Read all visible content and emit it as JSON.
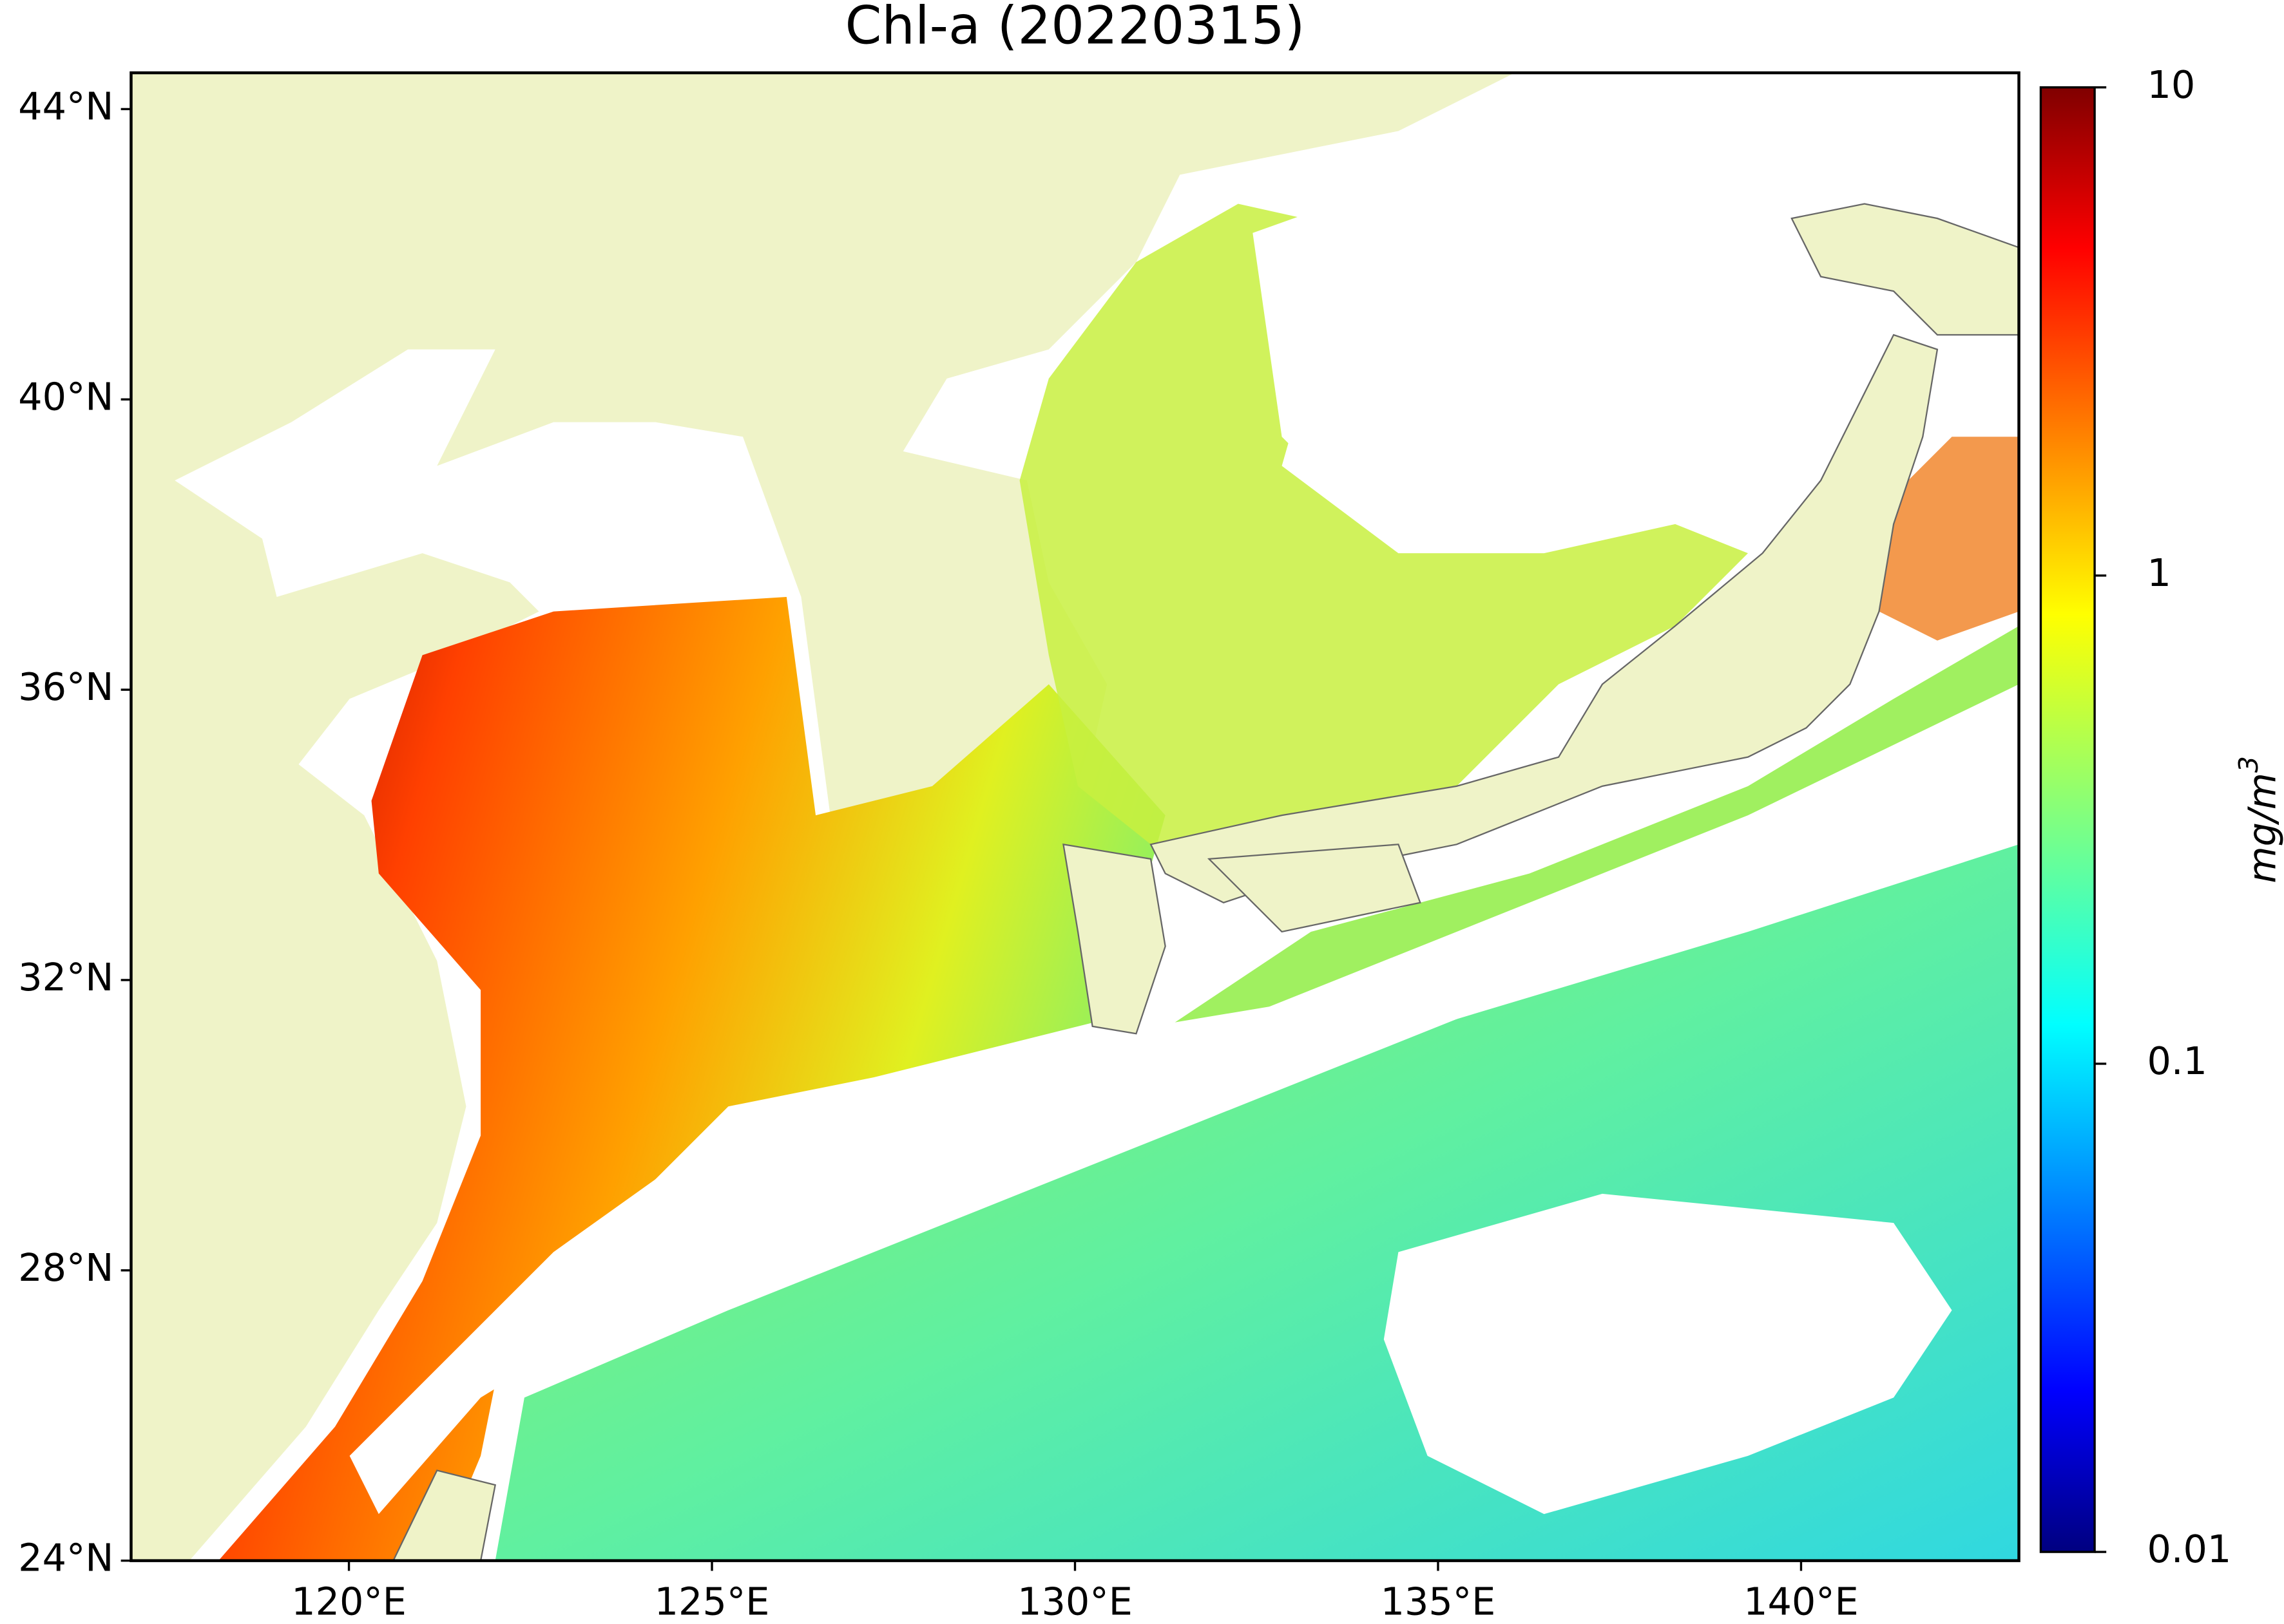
{
  "title": "Chl-a (20220315)",
  "map": {
    "xlim": [
      117,
      143
    ],
    "ylim": [
      24,
      44.5
    ],
    "xticks": [
      {
        "value": 120,
        "label": "120°E"
      },
      {
        "value": 125,
        "label": "125°E"
      },
      {
        "value": 130,
        "label": "130°E"
      },
      {
        "value": 135,
        "label": "135°E"
      },
      {
        "value": 140,
        "label": "140°E"
      }
    ],
    "yticks": [
      {
        "value": 24,
        "label": "24°N"
      },
      {
        "value": 28,
        "label": "28°N"
      },
      {
        "value": 32,
        "label": "32°N"
      },
      {
        "value": 36,
        "label": "36°N"
      },
      {
        "value": 40,
        "label": "40°N"
      },
      {
        "value": 44,
        "label": "44°N"
      }
    ]
  },
  "colorbar": {
    "label": "mg/m",
    "label_sup": "3",
    "scale": "log",
    "lim": [
      0.01,
      10
    ],
    "ticks": [
      0.01,
      0.1,
      1,
      10
    ]
  }
}
